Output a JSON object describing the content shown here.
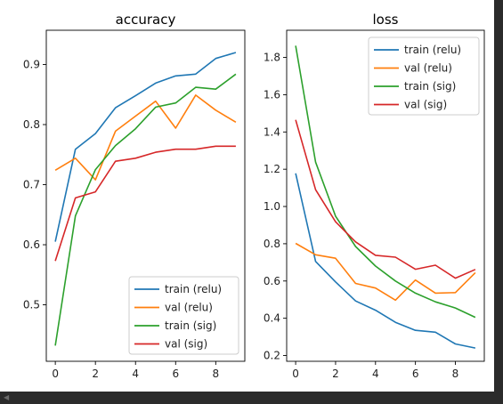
{
  "chart_data": [
    {
      "type": "line",
      "title": "accuracy",
      "xlabel": "",
      "ylabel": "",
      "xlim": [
        -0.45,
        9.45
      ],
      "ylim": [
        0.406,
        0.957
      ],
      "xticks": [
        0,
        2,
        4,
        6,
        8
      ],
      "yticks": [
        0.5,
        0.6,
        0.7,
        0.8,
        0.9
      ],
      "grid": false,
      "legend_position": "lower-right",
      "x": [
        0,
        1,
        2,
        3,
        4,
        5,
        6,
        7,
        8,
        9
      ],
      "series": [
        {
          "name": "train (relu)",
          "color": "#1f77b4",
          "values": [
            0.605,
            0.759,
            0.785,
            0.828,
            0.848,
            0.869,
            0.881,
            0.884,
            0.91,
            0.92
          ]
        },
        {
          "name": "val (relu)",
          "color": "#ff7f0e",
          "values": [
            0.724,
            0.744,
            0.708,
            0.789,
            0.814,
            0.839,
            0.794,
            0.849,
            0.824,
            0.804
          ]
        },
        {
          "name": "train (sig)",
          "color": "#2ca02c",
          "values": [
            0.432,
            0.648,
            0.725,
            0.765,
            0.793,
            0.829,
            0.836,
            0.862,
            0.859,
            0.884
          ]
        },
        {
          "name": "val (sig)",
          "color": "#d62728",
          "values": [
            0.573,
            0.678,
            0.688,
            0.739,
            0.744,
            0.754,
            0.759,
            0.759,
            0.764,
            0.764
          ]
        }
      ]
    },
    {
      "type": "line",
      "title": "loss",
      "xlabel": "",
      "ylabel": "",
      "xlim": [
        -0.45,
        9.45
      ],
      "ylim": [
        0.169,
        1.946
      ],
      "xticks": [
        0,
        2,
        4,
        6,
        8
      ],
      "yticks": [
        0.2,
        0.4,
        0.6,
        0.8,
        1.0,
        1.2,
        1.4,
        1.6,
        1.8
      ],
      "grid": false,
      "legend_position": "upper-right",
      "x": [
        0,
        1,
        2,
        3,
        4,
        5,
        6,
        7,
        8,
        9
      ],
      "series": [
        {
          "name": "train (relu)",
          "color": "#1f77b4",
          "values": [
            1.178,
            0.705,
            0.595,
            0.493,
            0.443,
            0.378,
            0.335,
            0.325,
            0.262,
            0.24
          ]
        },
        {
          "name": "val (relu)",
          "color": "#ff7f0e",
          "values": [
            0.802,
            0.741,
            0.722,
            0.587,
            0.562,
            0.497,
            0.605,
            0.535,
            0.538,
            0.645
          ]
        },
        {
          "name": "train (sig)",
          "color": "#2ca02c",
          "values": [
            1.863,
            1.238,
            0.948,
            0.785,
            0.68,
            0.6,
            0.535,
            0.488,
            0.455,
            0.405
          ]
        },
        {
          "name": "val (sig)",
          "color": "#d62728",
          "values": [
            1.465,
            1.09,
            0.918,
            0.81,
            0.738,
            0.728,
            0.663,
            0.685,
            0.615,
            0.662
          ]
        }
      ]
    }
  ]
}
